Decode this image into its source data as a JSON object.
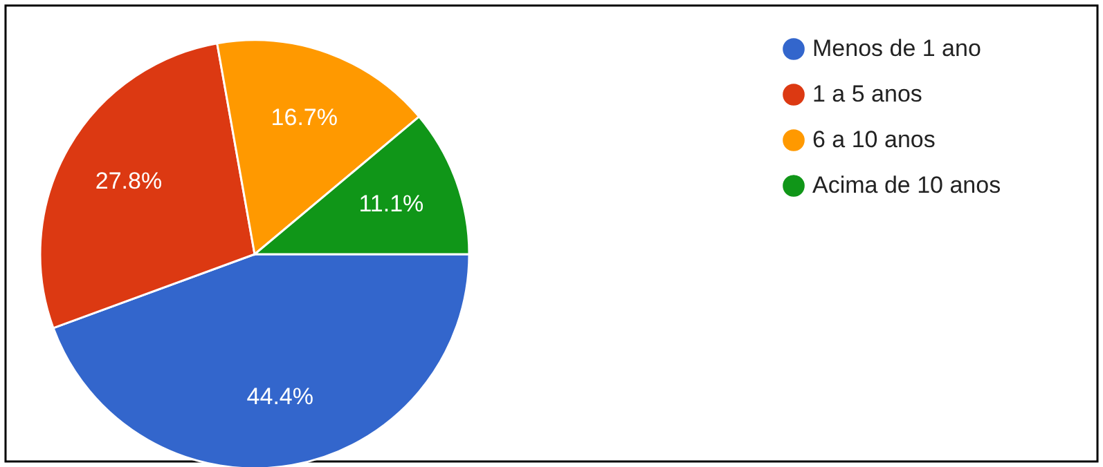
{
  "chart_data": {
    "type": "pie",
    "categories": [
      "Menos de 1 ano",
      "1 a 5 anos",
      "6 a 10 anos",
      "Acima de 10 anos"
    ],
    "values": [
      44.4,
      27.8,
      16.7,
      11.1
    ],
    "colors": [
      "#3366cc",
      "#dc3912",
      "#ff9900",
      "#109618"
    ],
    "value_labels": [
      "44.4%",
      "27.8%",
      "16.7%",
      "11.1%"
    ],
    "legend": "top right"
  }
}
